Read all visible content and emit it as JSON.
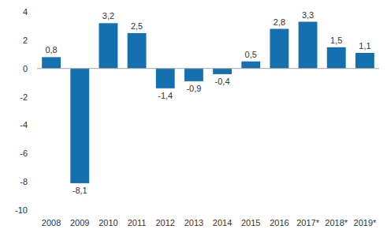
{
  "chart_data": {
    "type": "bar",
    "categories": [
      "2008",
      "2009",
      "2010",
      "2011",
      "2012",
      "2013",
      "2014",
      "2015",
      "2016",
      "2017*",
      "2018*",
      "2019*"
    ],
    "values": [
      0.8,
      -8.1,
      3.2,
      2.5,
      -1.4,
      -0.9,
      -0.4,
      0.5,
      2.8,
      3.3,
      1.5,
      1.1
    ],
    "value_labels": [
      "0,8",
      "-8,1",
      "3,2",
      "2,5",
      "-1,4",
      "-0,9",
      "-0,4",
      "0,5",
      "2,8",
      "3,3",
      "1,5",
      "1,1"
    ],
    "color": "#1570b0",
    "ylim": [
      -10,
      4
    ],
    "yticks": [
      -10,
      -8,
      -6,
      -4,
      -2,
      0,
      2,
      4
    ],
    "grid": false,
    "data_labels": true
  }
}
